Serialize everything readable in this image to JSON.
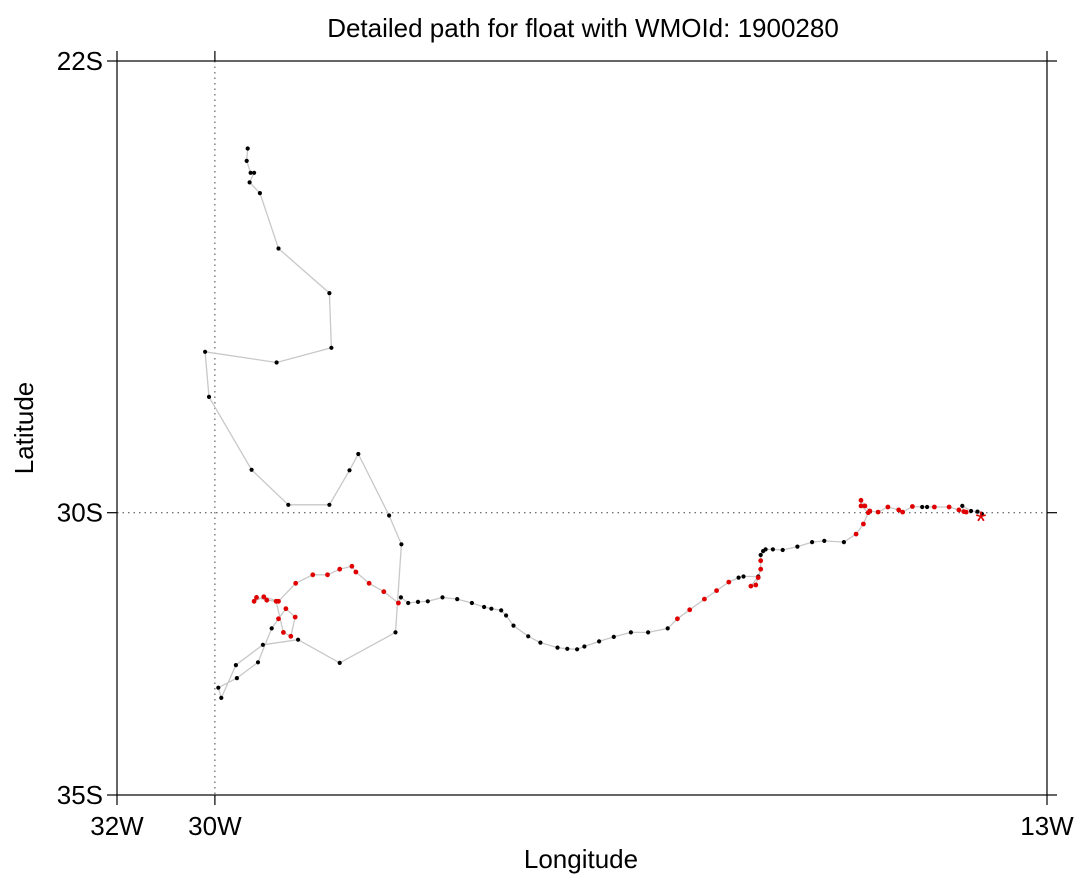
{
  "chart_data": {
    "type": "scatter",
    "title": "Detailed path for float with WMOId: 1900280",
    "xlabel": "Longitude",
    "ylabel": "Latitude",
    "xlim": [
      -32,
      -13
    ],
    "ylim": [
      -35,
      -22
    ],
    "x_ticks": [
      {
        "value": -32,
        "label": "32W"
      },
      {
        "value": -30,
        "label": "30W"
      },
      {
        "value": -13,
        "label": "13W"
      }
    ],
    "y_ticks": [
      {
        "value": -22,
        "label": "22S"
      },
      {
        "value": -30,
        "label": "30S"
      },
      {
        "value": -35,
        "label": "35S"
      }
    ],
    "reference_lines": [
      {
        "axis": "x",
        "value": -30,
        "style": "dotted"
      },
      {
        "axis": "y",
        "value": -30,
        "style": "dotted"
      }
    ],
    "colors": {
      "path_line": "#c8c8c8",
      "series_black": "#000000",
      "series_red": "#e00000",
      "deploy_marker": "#e00000"
    },
    "path": [
      {
        "lon": -29.33,
        "lat": -23.55,
        "c": "k"
      },
      {
        "lon": -29.35,
        "lat": -23.77,
        "c": "k"
      },
      {
        "lon": -29.27,
        "lat": -23.98,
        "c": "k"
      },
      {
        "lon": -29.2,
        "lat": -23.98,
        "c": "k"
      },
      {
        "lon": -29.29,
        "lat": -24.15,
        "c": "k"
      },
      {
        "lon": -29.08,
        "lat": -24.34,
        "c": "k"
      },
      {
        "lon": -28.7,
        "lat": -25.32,
        "c": "k"
      },
      {
        "lon": -27.66,
        "lat": -26.11,
        "c": "k"
      },
      {
        "lon": -27.62,
        "lat": -27.08,
        "c": "k"
      },
      {
        "lon": -28.74,
        "lat": -27.34,
        "c": "k"
      },
      {
        "lon": -30.2,
        "lat": -27.15,
        "c": "k"
      },
      {
        "lon": -30.12,
        "lat": -27.95,
        "c": "k"
      },
      {
        "lon": -29.25,
        "lat": -29.24,
        "c": "k"
      },
      {
        "lon": -28.5,
        "lat": -29.86,
        "c": "k"
      },
      {
        "lon": -27.66,
        "lat": -29.86,
        "c": "k"
      },
      {
        "lon": -27.25,
        "lat": -29.25,
        "c": "k"
      },
      {
        "lon": -27.07,
        "lat": -28.96,
        "c": "k"
      },
      {
        "lon": -26.44,
        "lat": -30.05,
        "c": "k"
      },
      {
        "lon": -26.19,
        "lat": -30.56,
        "c": "k"
      },
      {
        "lon": -26.31,
        "lat": -32.12,
        "c": "k"
      },
      {
        "lon": -27.45,
        "lat": -32.66,
        "c": "k"
      },
      {
        "lon": -28.3,
        "lat": -32.25,
        "c": "k"
      },
      {
        "lon": -29.02,
        "lat": -32.34,
        "c": "k"
      },
      {
        "lon": -29.57,
        "lat": -32.7,
        "c": "k"
      },
      {
        "lon": -29.87,
        "lat": -33.28,
        "c": "k"
      },
      {
        "lon": -29.93,
        "lat": -33.1,
        "c": "k"
      },
      {
        "lon": -29.55,
        "lat": -32.93,
        "c": "k"
      },
      {
        "lon": -29.12,
        "lat": -32.65,
        "c": "k"
      },
      {
        "lon": -28.84,
        "lat": -32.05,
        "c": "k"
      },
      {
        "lon": -28.7,
        "lat": -31.88,
        "c": "r"
      },
      {
        "lon": -28.55,
        "lat": -31.7,
        "c": "r"
      },
      {
        "lon": -28.36,
        "lat": -31.85,
        "c": "r"
      },
      {
        "lon": -28.45,
        "lat": -32.19,
        "c": "r"
      },
      {
        "lon": -28.6,
        "lat": -32.12,
        "c": "r"
      },
      {
        "lon": -28.75,
        "lat": -31.57,
        "c": "r"
      },
      {
        "lon": -28.94,
        "lat": -31.55,
        "c": "r"
      },
      {
        "lon": -29.15,
        "lat": -31.5,
        "c": "r"
      },
      {
        "lon": -29.2,
        "lat": -31.57,
        "c": "r"
      },
      {
        "lon": -29.0,
        "lat": -31.49,
        "c": "r"
      },
      {
        "lon": -28.7,
        "lat": -31.57,
        "c": "r"
      },
      {
        "lon": -28.35,
        "lat": -31.25,
        "c": "r"
      },
      {
        "lon": -28.0,
        "lat": -31.1,
        "c": "r"
      },
      {
        "lon": -27.7,
        "lat": -31.1,
        "c": "r"
      },
      {
        "lon": -27.45,
        "lat": -31.0,
        "c": "r"
      },
      {
        "lon": -27.2,
        "lat": -30.95,
        "c": "r"
      },
      {
        "lon": -27.12,
        "lat": -31.05,
        "c": "r"
      },
      {
        "lon": -26.85,
        "lat": -31.25,
        "c": "r"
      },
      {
        "lon": -26.55,
        "lat": -31.4,
        "c": "r"
      },
      {
        "lon": -26.25,
        "lat": -31.6,
        "c": "r"
      },
      {
        "lon": -26.2,
        "lat": -31.5,
        "c": "k"
      },
      {
        "lon": -26.05,
        "lat": -31.6,
        "c": "k"
      },
      {
        "lon": -25.85,
        "lat": -31.58,
        "c": "k"
      },
      {
        "lon": -25.65,
        "lat": -31.57,
        "c": "k"
      },
      {
        "lon": -25.35,
        "lat": -31.5,
        "c": "k"
      },
      {
        "lon": -25.05,
        "lat": -31.53,
        "c": "k"
      },
      {
        "lon": -24.75,
        "lat": -31.6,
        "c": "k"
      },
      {
        "lon": -24.5,
        "lat": -31.67,
        "c": "k"
      },
      {
        "lon": -24.35,
        "lat": -31.7,
        "c": "k"
      },
      {
        "lon": -24.15,
        "lat": -31.73,
        "c": "k"
      },
      {
        "lon": -24.05,
        "lat": -31.82,
        "c": "k"
      },
      {
        "lon": -23.9,
        "lat": -32.0,
        "c": "k"
      },
      {
        "lon": -23.6,
        "lat": -32.19,
        "c": "k"
      },
      {
        "lon": -23.35,
        "lat": -32.3,
        "c": "k"
      },
      {
        "lon": -23.0,
        "lat": -32.39,
        "c": "k"
      },
      {
        "lon": -22.8,
        "lat": -32.41,
        "c": "k"
      },
      {
        "lon": -22.6,
        "lat": -32.42,
        "c": "k"
      },
      {
        "lon": -22.45,
        "lat": -32.37,
        "c": "k"
      },
      {
        "lon": -22.15,
        "lat": -32.28,
        "c": "k"
      },
      {
        "lon": -21.85,
        "lat": -32.2,
        "c": "k"
      },
      {
        "lon": -21.5,
        "lat": -32.12,
        "c": "k"
      },
      {
        "lon": -21.15,
        "lat": -32.12,
        "c": "k"
      },
      {
        "lon": -20.75,
        "lat": -32.05,
        "c": "k"
      },
      {
        "lon": -20.55,
        "lat": -31.88,
        "c": "r"
      },
      {
        "lon": -20.3,
        "lat": -31.72,
        "c": "r"
      },
      {
        "lon": -20.0,
        "lat": -31.53,
        "c": "r"
      },
      {
        "lon": -19.75,
        "lat": -31.38,
        "c": "r"
      },
      {
        "lon": -19.5,
        "lat": -31.23,
        "c": "r"
      },
      {
        "lon": -19.3,
        "lat": -31.15,
        "c": "k"
      },
      {
        "lon": -19.2,
        "lat": -31.13,
        "c": "k"
      },
      {
        "lon": -18.9,
        "lat": -31.13,
        "c": "k"
      },
      {
        "lon": -19.05,
        "lat": -31.3,
        "c": "r"
      },
      {
        "lon": -18.95,
        "lat": -31.28,
        "c": "r"
      },
      {
        "lon": -18.9,
        "lat": -31.15,
        "c": "r"
      },
      {
        "lon": -18.85,
        "lat": -31.0,
        "c": "r"
      },
      {
        "lon": -18.85,
        "lat": -30.85,
        "c": "r"
      },
      {
        "lon": -18.85,
        "lat": -30.75,
        "c": "k"
      },
      {
        "lon": -18.8,
        "lat": -30.68,
        "c": "k"
      },
      {
        "lon": -18.75,
        "lat": -30.65,
        "c": "k"
      },
      {
        "lon": -18.6,
        "lat": -30.65,
        "c": "k"
      },
      {
        "lon": -18.4,
        "lat": -30.66,
        "c": "k"
      },
      {
        "lon": -18.1,
        "lat": -30.6,
        "c": "k"
      },
      {
        "lon": -17.8,
        "lat": -30.52,
        "c": "k"
      },
      {
        "lon": -17.55,
        "lat": -30.5,
        "c": "k"
      },
      {
        "lon": -17.15,
        "lat": -30.52,
        "c": "k"
      },
      {
        "lon": -16.9,
        "lat": -30.38,
        "c": "r"
      },
      {
        "lon": -16.75,
        "lat": -30.2,
        "c": "r"
      },
      {
        "lon": -16.65,
        "lat": -30.0,
        "c": "r"
      },
      {
        "lon": -16.8,
        "lat": -29.88,
        "c": "r"
      },
      {
        "lon": -16.8,
        "lat": -29.78,
        "c": "r"
      },
      {
        "lon": -16.72,
        "lat": -29.88,
        "c": "r"
      },
      {
        "lon": -16.62,
        "lat": -29.97,
        "c": "r"
      },
      {
        "lon": -16.45,
        "lat": -29.99,
        "c": "r"
      },
      {
        "lon": -16.25,
        "lat": -29.9,
        "c": "r"
      },
      {
        "lon": -16.03,
        "lat": -29.95,
        "c": "r"
      },
      {
        "lon": -15.95,
        "lat": -29.99,
        "c": "r"
      },
      {
        "lon": -15.75,
        "lat": -29.89,
        "c": "r"
      },
      {
        "lon": -15.55,
        "lat": -29.9,
        "c": "k"
      },
      {
        "lon": -15.45,
        "lat": -29.9,
        "c": "k"
      },
      {
        "lon": -15.3,
        "lat": -29.9,
        "c": "r"
      },
      {
        "lon": -15.0,
        "lat": -29.9,
        "c": "r"
      },
      {
        "lon": -14.8,
        "lat": -29.95,
        "c": "r"
      },
      {
        "lon": -14.65,
        "lat": -29.99,
        "c": "r"
      },
      {
        "lon": -14.7,
        "lat": -29.98,
        "c": "r"
      },
      {
        "lon": -14.73,
        "lat": -29.88,
        "c": "k"
      },
      {
        "lon": -14.55,
        "lat": -29.97,
        "c": "k"
      },
      {
        "lon": -14.42,
        "lat": -29.98,
        "c": "k"
      },
      {
        "lon": -14.33,
        "lat": -30.02,
        "c": "k"
      }
    ],
    "deployment_marker": {
      "lon": -14.35,
      "lat": -30.12,
      "symbol": "*"
    }
  }
}
